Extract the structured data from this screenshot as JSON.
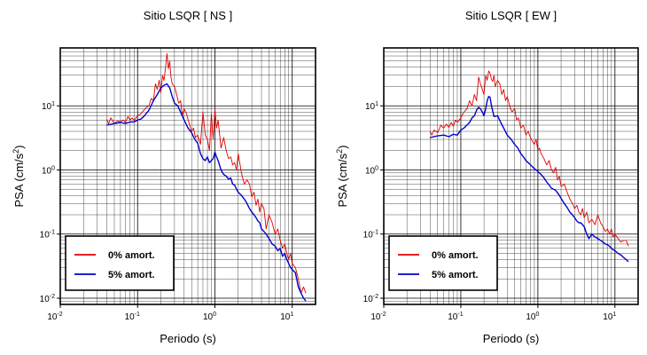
{
  "colors": {
    "undamped": "#e00000",
    "damped": "#0000cc",
    "grid": "#000000"
  },
  "chart_data": [
    {
      "type": "line",
      "title": "Sitio LSQR [ NS ]",
      "xlabel": "Periodo (s)",
      "ylabel": {
        "text": "PSA (cm/s",
        "sup": "2",
        "close": ")"
      },
      "x_scale": "log",
      "y_scale": "log",
      "xlim": [
        0.01,
        20
      ],
      "ylim": [
        0.008,
        80
      ],
      "grid": true,
      "legend_position": "bottom-left",
      "x_ticks": [
        {
          "base": "10",
          "exp": "-2"
        },
        {
          "base": "10",
          "exp": "-1"
        },
        {
          "base": "10",
          "exp": "0"
        },
        {
          "base": "10",
          "exp": "1"
        }
      ],
      "y_ticks": [
        {
          "base": "10",
          "exp": "-2"
        },
        {
          "base": "10",
          "exp": "-1"
        },
        {
          "base": "10",
          "exp": "0"
        },
        {
          "base": "10",
          "exp": "1"
        }
      ],
      "series": [
        {
          "name": "0% amort.",
          "color": "#e00000",
          "x": [
            0.04,
            0.042,
            0.045,
            0.05,
            0.055,
            0.06,
            0.065,
            0.07,
            0.075,
            0.08,
            0.085,
            0.09,
            0.1,
            0.11,
            0.12,
            0.13,
            0.14,
            0.15,
            0.16,
            0.17,
            0.18,
            0.19,
            0.2,
            0.21,
            0.22,
            0.23,
            0.24,
            0.25,
            0.26,
            0.27,
            0.28,
            0.3,
            0.32,
            0.34,
            0.36,
            0.38,
            0.4,
            0.43,
            0.46,
            0.5,
            0.53,
            0.56,
            0.6,
            0.65,
            0.7,
            0.75,
            0.8,
            0.85,
            0.9,
            0.95,
            1.0,
            1.05,
            1.1,
            1.2,
            1.3,
            1.4,
            1.5,
            1.6,
            1.7,
            1.8,
            1.9,
            2.0,
            2.2,
            2.4,
            2.6,
            2.8,
            3.0,
            3.2,
            3.4,
            3.6,
            3.8,
            4.0,
            4.3,
            4.6,
            5.0,
            5.5,
            6.0,
            6.5,
            7.0,
            7.5,
            8.0,
            8.5,
            9.0,
            9.5,
            10,
            11,
            12,
            13,
            14,
            15
          ],
          "y": [
            6.2,
            5.2,
            6.5,
            5.3,
            5.8,
            5.6,
            6.0,
            5.5,
            6.8,
            6.0,
            6.5,
            5.9,
            7.0,
            7.5,
            8.5,
            9.5,
            10.0,
            13.0,
            12.0,
            22.0,
            18.0,
            25.0,
            16.0,
            30.0,
            25.0,
            40.0,
            65.0,
            38.0,
            50.0,
            28.0,
            22.0,
            20.0,
            15.0,
            11.0,
            12.0,
            7.0,
            9.0,
            7.5,
            5.5,
            4.0,
            4.5,
            3.2,
            3.5,
            2.5,
            8.0,
            3.5,
            3.0,
            2.0,
            7.5,
            3.0,
            9.0,
            4.5,
            6.0,
            2.2,
            3.2,
            2.0,
            1.5,
            1.6,
            1.2,
            1.3,
            1.0,
            1.8,
            0.9,
            0.6,
            0.7,
            0.6,
            0.38,
            0.45,
            0.28,
            0.35,
            0.22,
            0.3,
            0.25,
            0.12,
            0.2,
            0.15,
            0.1,
            0.12,
            0.08,
            0.06,
            0.07,
            0.05,
            0.04,
            0.05,
            0.035,
            0.03,
            0.02,
            0.012,
            0.015,
            0.012
          ]
        },
        {
          "name": "5% amort.",
          "color": "#0000cc",
          "x": [
            0.04,
            0.05,
            0.06,
            0.07,
            0.08,
            0.09,
            0.1,
            0.11,
            0.12,
            0.14,
            0.16,
            0.18,
            0.2,
            0.22,
            0.24,
            0.26,
            0.28,
            0.3,
            0.33,
            0.36,
            0.4,
            0.45,
            0.5,
            0.55,
            0.6,
            0.65,
            0.7,
            0.75,
            0.8,
            0.85,
            0.9,
            0.95,
            1.0,
            1.05,
            1.1,
            1.2,
            1.3,
            1.4,
            1.5,
            1.6,
            1.7,
            1.8,
            1.9,
            2.0,
            2.2,
            2.4,
            2.6,
            2.8,
            3.0,
            3.2,
            3.4,
            3.6,
            3.8,
            4.0,
            4.3,
            4.6,
            5.0,
            5.5,
            6.0,
            6.5,
            7.0,
            7.5,
            8.0,
            8.5,
            9.0,
            9.5,
            10,
            11,
            12,
            13,
            14,
            15
          ],
          "y": [
            5.0,
            5.3,
            5.5,
            5.3,
            5.6,
            5.6,
            6.0,
            6.2,
            6.8,
            8.5,
            12.0,
            15.0,
            19.0,
            21.0,
            22.0,
            19.0,
            14.0,
            11.0,
            10.0,
            8.0,
            6.0,
            4.5,
            3.8,
            3.0,
            2.6,
            1.8,
            1.5,
            1.4,
            1.6,
            1.3,
            1.4,
            1.5,
            1.9,
            1.6,
            1.4,
            1.0,
            0.85,
            0.8,
            0.72,
            0.75,
            0.6,
            0.58,
            0.5,
            0.45,
            0.4,
            0.35,
            0.3,
            0.25,
            0.22,
            0.2,
            0.18,
            0.16,
            0.15,
            0.12,
            0.11,
            0.1,
            0.085,
            0.07,
            0.065,
            0.055,
            0.06,
            0.045,
            0.05,
            0.04,
            0.035,
            0.03,
            0.028,
            0.025,
            0.015,
            0.012,
            0.01,
            0.009
          ]
        }
      ]
    },
    {
      "type": "line",
      "title": "Sitio LSQR [ EW ]",
      "xlabel": "Periodo (s)",
      "ylabel": {
        "text": "PSA (cm/s",
        "sup": "2",
        "close": ")"
      },
      "x_scale": "log",
      "y_scale": "log",
      "xlim": [
        0.01,
        20
      ],
      "ylim": [
        0.008,
        80
      ],
      "grid": true,
      "legend_position": "bottom-left",
      "x_ticks": [
        {
          "base": "10",
          "exp": "-2"
        },
        {
          "base": "10",
          "exp": "-1"
        },
        {
          "base": "10",
          "exp": "0"
        },
        {
          "base": "10",
          "exp": "1"
        }
      ],
      "y_ticks": [
        {
          "base": "10",
          "exp": "-2"
        },
        {
          "base": "10",
          "exp": "-1"
        },
        {
          "base": "10",
          "exp": "0"
        },
        {
          "base": "10",
          "exp": "1"
        }
      ],
      "series": [
        {
          "name": "0% amort.",
          "color": "#e00000",
          "x": [
            0.04,
            0.042,
            0.045,
            0.05,
            0.055,
            0.06,
            0.065,
            0.07,
            0.075,
            0.08,
            0.085,
            0.09,
            0.1,
            0.11,
            0.12,
            0.13,
            0.14,
            0.15,
            0.16,
            0.17,
            0.18,
            0.19,
            0.2,
            0.21,
            0.22,
            0.23,
            0.24,
            0.25,
            0.26,
            0.27,
            0.28,
            0.3,
            0.32,
            0.34,
            0.36,
            0.38,
            0.4,
            0.43,
            0.46,
            0.5,
            0.53,
            0.56,
            0.6,
            0.65,
            0.7,
            0.75,
            0.8,
            0.85,
            0.9,
            0.95,
            1.0,
            1.05,
            1.1,
            1.2,
            1.3,
            1.4,
            1.5,
            1.6,
            1.7,
            1.8,
            1.9,
            2.0,
            2.2,
            2.4,
            2.6,
            2.8,
            3.0,
            3.2,
            3.4,
            3.6,
            3.8,
            4.0,
            4.3,
            4.6,
            5.0,
            5.5,
            6.0,
            6.5,
            7.0,
            7.5,
            8.0,
            8.5,
            9.0,
            9.5,
            10,
            11,
            12,
            13,
            14,
            15
          ],
          "y": [
            4.0,
            3.5,
            4.2,
            3.8,
            5.0,
            4.5,
            5.2,
            4.6,
            5.5,
            4.8,
            6.0,
            5.5,
            6.5,
            8.0,
            9.0,
            12.0,
            10.0,
            15.0,
            12.0,
            28.0,
            22.0,
            18.0,
            15.0,
            30.0,
            25.0,
            35.0,
            32.0,
            26.0,
            24.0,
            30.0,
            20.0,
            25.0,
            22.0,
            15.0,
            18.0,
            12.0,
            14.0,
            10.0,
            8.0,
            9.0,
            6.0,
            6.5,
            4.5,
            5.0,
            3.5,
            4.0,
            3.2,
            2.8,
            2.5,
            3.0,
            2.0,
            2.2,
            1.8,
            1.5,
            1.2,
            1.4,
            1.0,
            0.9,
            1.1,
            0.7,
            0.8,
            0.55,
            0.6,
            0.45,
            0.35,
            0.3,
            0.25,
            0.28,
            0.22,
            0.2,
            0.25,
            0.18,
            0.22,
            0.15,
            0.17,
            0.14,
            0.2,
            0.15,
            0.13,
            0.11,
            0.12,
            0.1,
            0.12,
            0.09,
            0.1,
            0.085,
            0.075,
            0.08,
            0.08,
            0.065
          ]
        },
        {
          "name": "5% amort.",
          "color": "#0000cc",
          "x": [
            0.04,
            0.05,
            0.06,
            0.07,
            0.08,
            0.09,
            0.1,
            0.11,
            0.12,
            0.13,
            0.14,
            0.15,
            0.16,
            0.17,
            0.18,
            0.19,
            0.2,
            0.21,
            0.22,
            0.23,
            0.24,
            0.25,
            0.27,
            0.3,
            0.33,
            0.36,
            0.4,
            0.45,
            0.5,
            0.55,
            0.6,
            0.65,
            0.7,
            0.75,
            0.8,
            0.9,
            1.0,
            1.1,
            1.2,
            1.3,
            1.4,
            1.5,
            1.6,
            1.7,
            1.8,
            1.9,
            2.0,
            2.2,
            2.4,
            2.6,
            2.8,
            3.0,
            3.2,
            3.4,
            3.6,
            3.8,
            4.0,
            4.3,
            4.6,
            5.0,
            5.5,
            6.0,
            6.5,
            7.0,
            7.5,
            8.0,
            8.5,
            9.0,
            9.5,
            10,
            11,
            12,
            13,
            14,
            15
          ],
          "y": [
            3.2,
            3.4,
            3.5,
            3.3,
            3.6,
            3.5,
            4.2,
            4.5,
            5.0,
            5.5,
            6.5,
            7.0,
            8.5,
            9.5,
            9.0,
            8.0,
            7.0,
            9.0,
            12.0,
            14.0,
            13.5,
            10.0,
            6.8,
            7.0,
            5.5,
            4.5,
            3.5,
            3.0,
            2.5,
            2.2,
            1.8,
            1.6,
            1.4,
            1.3,
            1.2,
            1.05,
            0.95,
            0.85,
            0.75,
            0.65,
            0.58,
            0.52,
            0.5,
            0.48,
            0.44,
            0.4,
            0.36,
            0.3,
            0.26,
            0.22,
            0.2,
            0.18,
            0.16,
            0.15,
            0.15,
            0.14,
            0.13,
            0.1,
            0.085,
            0.1,
            0.09,
            0.085,
            0.08,
            0.075,
            0.07,
            0.068,
            0.065,
            0.06,
            0.057,
            0.055,
            0.05,
            0.047,
            0.043,
            0.04,
            0.037
          ]
        }
      ]
    }
  ]
}
